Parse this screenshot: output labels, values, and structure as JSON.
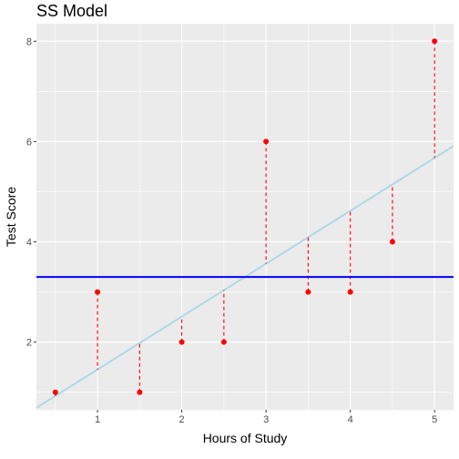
{
  "chart_data": {
    "type": "scatter",
    "title": "SS Model",
    "xlabel": "Hours of Study",
    "ylabel": "Test Score",
    "xlim": [
      0.275,
      5.225
    ],
    "ylim": [
      0.65,
      8.35
    ],
    "xticks": [
      1,
      2,
      3,
      4,
      5
    ],
    "yticks": [
      2,
      4,
      6,
      8
    ],
    "x_tick_labels": [
      "1",
      "2",
      "3",
      "4",
      "5"
    ],
    "y_tick_labels": [
      "2",
      "4",
      "6",
      "8"
    ],
    "grid": true,
    "points": {
      "x": [
        0.5,
        1.0,
        1.5,
        2.0,
        2.5,
        3.0,
        3.5,
        4.0,
        4.5,
        5.0
      ],
      "y": [
        1,
        3,
        1,
        2,
        2,
        6,
        3,
        3,
        4,
        8
      ],
      "color": "#ff0000"
    },
    "mean_line": {
      "y": 3.3,
      "color": "#0000ff"
    },
    "regression_line": {
      "intercept": 0.4,
      "slope": 1.0545,
      "color": "#add8e6"
    },
    "residual_lines": {
      "to": "regression_line",
      "style": "dashed",
      "color": "#ff0000"
    },
    "colors": {
      "panel": "#ebebeb",
      "grid": "#ffffff"
    }
  }
}
